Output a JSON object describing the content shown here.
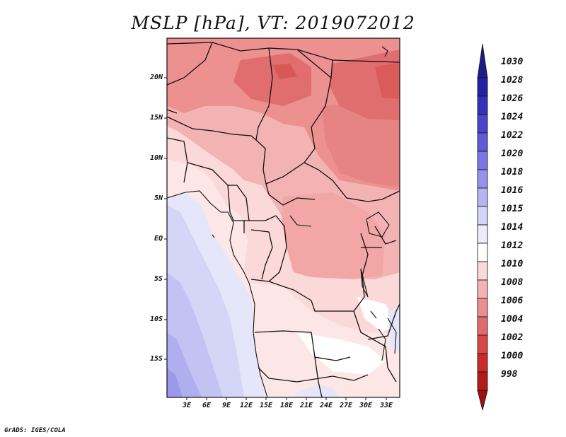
{
  "title": "MSLP [hPa], VT: 2019072012",
  "footer": "GrADS: IGES/COLA",
  "lat_labels": [
    "20N",
    "15N",
    "10N",
    "5N",
    "EQ",
    "5S",
    "10S",
    "15S"
  ],
  "lon_labels": [
    "3E",
    "6E",
    "9E",
    "12E",
    "15E",
    "18E",
    "21E",
    "24E",
    "27E",
    "30E",
    "33E"
  ],
  "colorbar": {
    "labels": [
      "1030",
      "1028",
      "1026",
      "1024",
      "1022",
      "1020",
      "1018",
      "1016",
      "1015",
      "1014",
      "1012",
      "1010",
      "1008",
      "1006",
      "1004",
      "1002",
      "1000",
      "998"
    ],
    "colors": [
      "#1e1c86",
      "#2422a4",
      "#3531bb",
      "#4a46c9",
      "#5f5bd6",
      "#7b77e2",
      "#9592ea",
      "#b5b4f1",
      "#d4d5f7",
      "#ececfb",
      "#ffffff",
      "#fbd9d9",
      "#f4b3b3",
      "#eb8e8e",
      "#e16b6b",
      "#d94848",
      "#cc2a2a",
      "#b31a1a",
      "#9c1212"
    ]
  },
  "map": {
    "region": "Central Africa",
    "lon_range": [
      0,
      35
    ],
    "lat_range": [
      -20,
      25
    ],
    "variable": "Mean sea level pressure (hPa)"
  }
}
